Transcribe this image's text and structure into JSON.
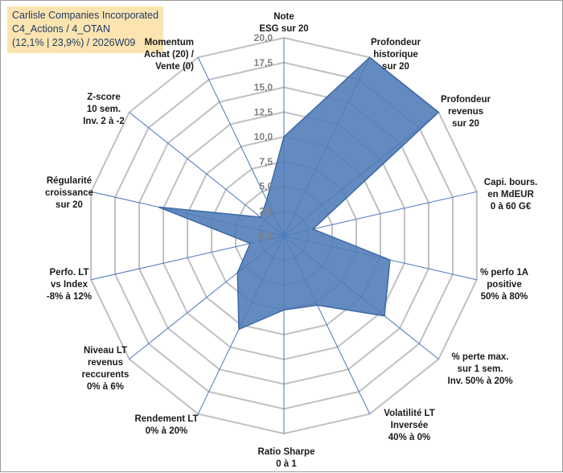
{
  "title_lines": [
    "Carlisle Companies Incorporated",
    "C4_Actions / 4_OTAN",
    "(12,1% | 23,9%) / 2026W09"
  ],
  "chart_data": {
    "type": "radar",
    "r_min": 0,
    "r_max": 20,
    "tick_step": 2.5,
    "tick_labels": [
      "0,0",
      "2,5",
      "5,0",
      "7,5",
      "10,0",
      "12,5",
      "15,0",
      "17,5",
      "20,0"
    ],
    "axes": [
      {
        "label_lines": [
          "Note",
          "ESG sur 20"
        ],
        "value": 10.0
      },
      {
        "label_lines": [
          "Profondeur",
          "historique",
          "sur 20"
        ],
        "value": 20.0
      },
      {
        "label_lines": [
          "Profondeur",
          "revenus",
          "sur 20"
        ],
        "value": 20.0
      },
      {
        "label_lines": [
          "Capi. bours.",
          "en MdEUR",
          "0 à 60 G€"
        ],
        "value": 3.0
      },
      {
        "label_lines": [
          "% perfo 1A",
          "positive",
          "50% à 80%"
        ],
        "value": 11.0
      },
      {
        "label_lines": [
          "% perte max.",
          "sur 1 sem.",
          "Inv. 50% à 20%"
        ],
        "value": 13.0
      },
      {
        "label_lines": [
          "Volatilité LT",
          "Inversée",
          "40% à 0%"
        ],
        "value": 7.8
      },
      {
        "label_lines": [
          "Ratio Sharpe",
          "0 à 1"
        ],
        "value": 7.5
      },
      {
        "label_lines": [
          "Rendement LT",
          "0% à 20%"
        ],
        "value": 10.5
      },
      {
        "label_lines": [
          "Niveau LT",
          "revenus",
          "reccurents",
          "0% à 6%"
        ],
        "value": 6.0
      },
      {
        "label_lines": [
          "Perfo. LT",
          "vs Index",
          "-8% à 12%"
        ],
        "value": 3.5
      },
      {
        "label_lines": [
          "Régularité",
          "croissance",
          "sur 20"
        ],
        "value": 13.0
      },
      {
        "label_lines": [
          "Z-score",
          "10 sem.",
          "Inv. 2 à -2"
        ],
        "value": 3.0
      },
      {
        "label_lines": [
          "Momentum",
          "Achat (20) /",
          "Vente (0)"
        ],
        "value": 4.0
      }
    ],
    "colors": {
      "fill": "#4f7bb7",
      "stroke": "#3e6aa8",
      "grid": "#c0c0c0",
      "spoke": "#4a76c0"
    },
    "grid": true
  }
}
